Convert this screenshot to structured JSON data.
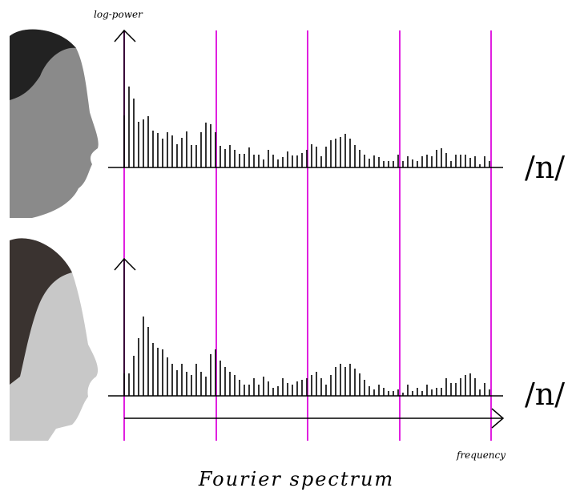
{
  "chart_data": {
    "type": "bar",
    "title": "Fourier spectrum",
    "y_label": "log-power",
    "x_label": "frequency",
    "series": [
      {
        "name": "/n/",
        "color": "#000000",
        "values": [
          65,
          101,
          86,
          57,
          60,
          64,
          46,
          43,
          36,
          44,
          40,
          29,
          37,
          45,
          28,
          28,
          44,
          56,
          54,
          44,
          27,
          23,
          28,
          22,
          17,
          17,
          25,
          16,
          16,
          10,
          22,
          16,
          10,
          13,
          20,
          15,
          15,
          18,
          22,
          29,
          26,
          14,
          26,
          34,
          36,
          38,
          42,
          36,
          28,
          22,
          16,
          11,
          15,
          13,
          8,
          8,
          8,
          16,
          8,
          14,
          10,
          8,
          14,
          16,
          14,
          22,
          24,
          18,
          8,
          16,
          16,
          16,
          12,
          14,
          4,
          14,
          8
        ]
      },
      {
        "name": "/n/",
        "color": "#000000",
        "values": [
          28,
          28,
          50,
          72,
          99,
          86,
          66,
          60,
          58,
          48,
          40,
          32,
          40,
          30,
          26,
          40,
          30,
          24,
          52,
          58,
          44,
          36,
          30,
          26,
          20,
          14,
          14,
          22,
          14,
          24,
          18,
          10,
          12,
          22,
          16,
          14,
          18,
          20,
          22,
          26,
          30,
          22,
          14,
          26,
          36,
          40,
          36,
          40,
          34,
          28,
          20,
          12,
          8,
          14,
          10,
          6,
          6,
          8,
          4,
          14,
          6,
          10,
          6,
          14,
          8,
          10,
          10,
          22,
          16,
          16,
          22,
          26,
          28,
          22,
          8,
          16,
          8
        ]
      }
    ],
    "grid_color": "#e020e0"
  }
}
